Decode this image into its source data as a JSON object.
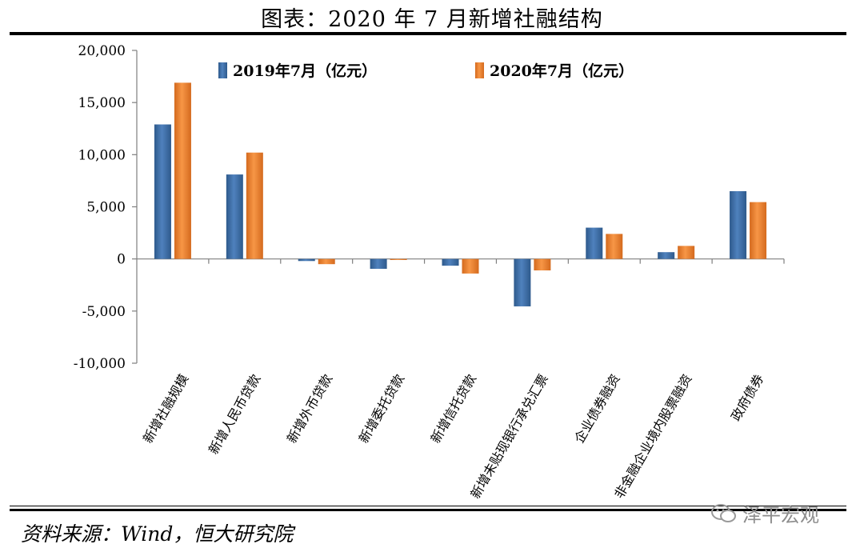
{
  "title": "图表：2020 年 7 月新增社融结构",
  "source": "资料来源：Wind，恒大研究院",
  "watermark": "泽平宏观",
  "colors": {
    "series1": "#4f81bd",
    "series1_dark": "#2e5a8c",
    "series2": "#f79646",
    "series2_dark": "#d46a1e",
    "axis": "#7f7f7f"
  },
  "chart_data": {
    "type": "bar",
    "title": "",
    "xlabel": "",
    "ylabel": "",
    "ylim": [
      -10000,
      20000
    ],
    "yticks": [
      20000,
      15000,
      10000,
      5000,
      0,
      -5000,
      -10000
    ],
    "ytick_labels": [
      "20,000",
      "15,000",
      "10,000",
      "5,000",
      "0",
      "-5,000",
      "-10,000"
    ],
    "legend_position": "top",
    "categories": [
      "新增社融规模",
      "新增人民币贷款",
      "新增外币贷款",
      "新增委托贷款",
      "新增信托贷款",
      "新增未贴现银行承兑汇票",
      "企业债券融资",
      "非金融企业境内股票融资",
      "政府债券"
    ],
    "series": [
      {
        "name": "2019年7月（亿元）",
        "values": [
          12900,
          8100,
          -200,
          -950,
          -650,
          -4550,
          3000,
          650,
          6500
        ]
      },
      {
        "name": "2020年7月（亿元）",
        "values": [
          16900,
          10200,
          -500,
          -100,
          -1400,
          -1100,
          2400,
          1250,
          5450
        ]
      }
    ]
  }
}
